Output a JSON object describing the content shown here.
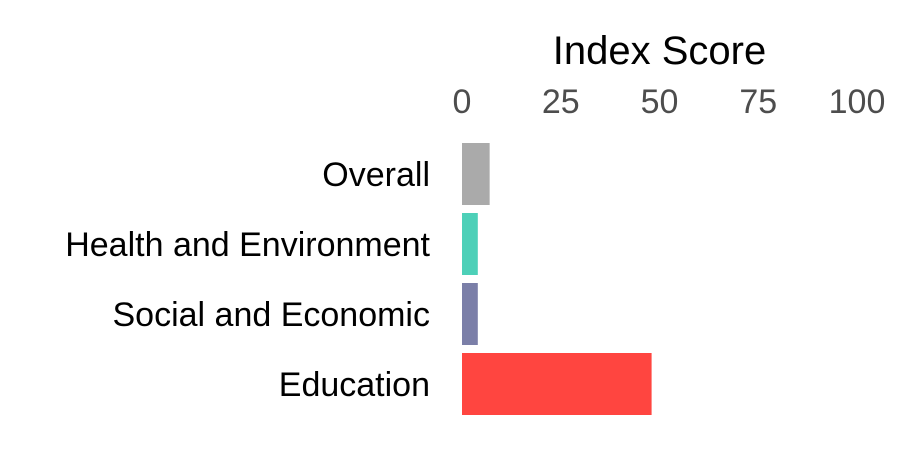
{
  "chart_data": {
    "type": "bar",
    "orientation": "horizontal",
    "title": "",
    "xlabel": "Index Score",
    "ylabel": "",
    "xlim": [
      0,
      100
    ],
    "x_ticks": [
      "0",
      "25",
      "50",
      "75",
      "100"
    ],
    "x_axis_position": "top",
    "grid": false,
    "legend": "none",
    "categories": [
      "Overall",
      "Health and Environment",
      "Social and Economic",
      "Education"
    ],
    "values": [
      7,
      4,
      4,
      48
    ],
    "colors": [
      "#aaaaaa",
      "#4dd0b8",
      "#7b7fa8",
      "#ff4540"
    ]
  }
}
